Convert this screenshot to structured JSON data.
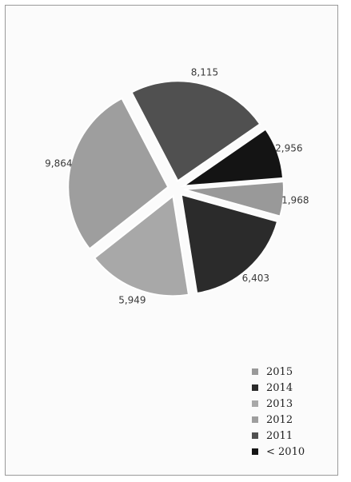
{
  "chart_data": {
    "type": "pie",
    "exploded": true,
    "slices": [
      {
        "label": "2015",
        "value": 1968,
        "display": "1,968",
        "color": "#999999"
      },
      {
        "label": "2014",
        "value": 6403,
        "display": "6,403",
        "color": "#2b2b2b"
      },
      {
        "label": "2013",
        "value": 5949,
        "display": "5,949",
        "color": "#a8a8a8"
      },
      {
        "label": "2012",
        "value": 9864,
        "display": "9,864",
        "color": "#9e9e9e"
      },
      {
        "label": "2011",
        "value": 8115,
        "display": "8,115",
        "color": "#505050"
      },
      {
        "label": "< 2010",
        "value": 2956,
        "display": "2,956",
        "color": "#141414"
      }
    ],
    "legend": {
      "position": "bottom-right",
      "items": [
        "2015",
        "2014",
        "2013",
        "2012",
        "2011",
        "< 2010"
      ]
    }
  }
}
